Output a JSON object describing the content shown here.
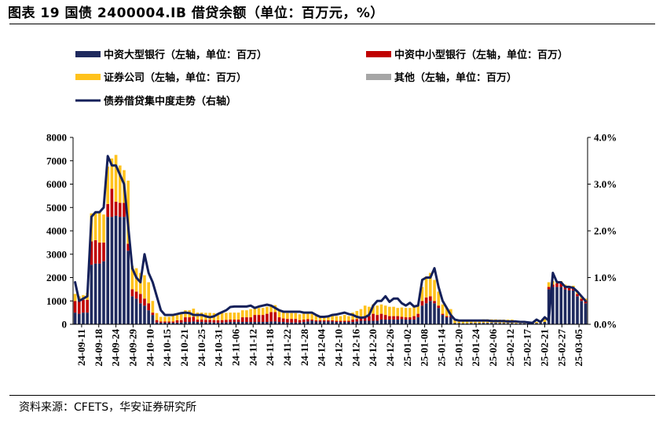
{
  "header": {
    "title": "图表 19  国债 2400004.IB 借贷余额（单位：百万元，%）"
  },
  "footer": {
    "source": "资料来源：CFETS，华安证券研究所"
  },
  "colors": {
    "large_bank": "#1F2A5E",
    "small_bank": "#C00000",
    "securities": "#FFC21C",
    "other": "#A6A6A6",
    "trend": "#14205A",
    "axis": "#000000"
  },
  "chart_data": {
    "type": "bar",
    "stacked": true,
    "dual_axis": true,
    "legend_position": "top",
    "grid": false,
    "left_axis": {
      "range": [
        0,
        8000
      ],
      "ticks": [
        "0",
        "1000",
        "2000",
        "3000",
        "4000",
        "5000",
        "6000",
        "7000",
        "8000"
      ]
    },
    "right_axis": {
      "range": [
        0,
        4.0
      ],
      "ticks": [
        "0.0%",
        "1.0%",
        "2.0%",
        "3.0%",
        "4.0%"
      ]
    },
    "x_tick_labels": [
      "24-09-11",
      "24-09-18",
      "24-09-24",
      "24-09-29",
      "24-10-10",
      "24-10-15",
      "24-10-21",
      "24-10-25",
      "24-10-31",
      "24-11-06",
      "24-11-12",
      "24-11-18",
      "24-11-22",
      "24-11-28",
      "24-12-04",
      "24-12-10",
      "24-12-16",
      "24-12-20",
      "24-12-26",
      "25-01-02",
      "25-01-08",
      "25-01-14",
      "25-01-20",
      "25-01-24",
      "25-02-06",
      "25-02-12",
      "25-02-17",
      "25-02-21",
      "25-02-27",
      "25-03-05"
    ],
    "legend": [
      {
        "key": "large_bank",
        "label": "中资大型银行（左轴，单位：百万）",
        "kind": "bar"
      },
      {
        "key": "small_bank",
        "label": "中资中小型银行（左轴，单位：百万）",
        "kind": "bar"
      },
      {
        "key": "securities",
        "label": "证券公司（左轴，单位：百万）",
        "kind": "bar"
      },
      {
        "key": "other",
        "label": "其他（左轴，单位：百万）",
        "kind": "bar"
      },
      {
        "key": "trend",
        "label": "债券借贷集中度走势（右轴）",
        "kind": "line"
      }
    ],
    "series": [
      {
        "key": "large_bank",
        "axis": "left",
        "values": [
          500,
          450,
          500,
          500,
          2550,
          2600,
          2600,
          2700,
          4600,
          4600,
          4650,
          4600,
          4600,
          3150,
          1200,
          1100,
          900,
          800,
          600,
          400,
          80,
          70,
          70,
          70,
          70,
          70,
          80,
          100,
          100,
          120,
          100,
          100,
          90,
          90,
          80,
          70,
          80,
          90,
          100,
          100,
          100,
          100,
          100,
          100,
          100,
          100,
          100,
          100,
          120,
          120,
          100,
          100,
          80,
          80,
          80,
          80,
          100,
          120,
          150,
          120,
          120,
          120,
          120,
          120,
          100,
          100,
          100,
          100,
          100,
          120,
          150,
          150,
          150,
          150,
          150,
          200,
          200,
          200,
          200,
          200,
          220,
          200,
          200,
          200,
          300,
          800,
          900,
          1000,
          900,
          700,
          400,
          300,
          300,
          50,
          50,
          40,
          40,
          50,
          50,
          50,
          60,
          60,
          60,
          60,
          50,
          50,
          50,
          50,
          40,
          40,
          40,
          40,
          50,
          50,
          50,
          100,
          1500,
          1600,
          1600,
          1600,
          1500,
          1450,
          1450,
          1200,
          1000,
          900
        ]
      },
      {
        "key": "small_bank",
        "axis": "left",
        "values": [
          500,
          550,
          550,
          550,
          1000,
          1000,
          900,
          800,
          550,
          1200,
          600,
          600,
          600,
          300,
          300,
          300,
          400,
          300,
          300,
          100,
          100,
          50,
          50,
          50,
          50,
          100,
          100,
          200,
          200,
          200,
          100,
          100,
          100,
          100,
          100,
          100,
          100,
          100,
          100,
          100,
          100,
          200,
          200,
          200,
          300,
          300,
          300,
          350,
          400,
          400,
          200,
          150,
          150,
          150,
          150,
          100,
          100,
          100,
          50,
          50,
          50,
          50,
          50,
          50,
          50,
          50,
          50,
          50,
          100,
          100,
          150,
          200,
          200,
          300,
          250,
          250,
          200,
          150,
          150,
          150,
          100,
          100,
          100,
          150,
          150,
          200,
          250,
          200,
          100,
          100,
          50,
          50,
          50,
          0,
          0,
          0,
          0,
          0,
          0,
          0,
          0,
          0,
          0,
          0,
          0,
          0,
          0,
          0,
          0,
          0,
          0,
          0,
          0,
          0,
          0,
          0,
          100,
          100,
          150,
          150,
          100,
          100,
          100,
          100,
          100,
          100
        ]
      },
      {
        "key": "securities",
        "axis": "left",
        "values": [
          300,
          200,
          200,
          300,
          1200,
          1200,
          1300,
          1200,
          1600,
          1300,
          2000,
          1600,
          1400,
          2700,
          1000,
          1000,
          900,
          1000,
          900,
          500,
          300,
          200,
          200,
          200,
          250,
          250,
          300,
          300,
          300,
          350,
          300,
          300,
          300,
          300,
          300,
          300,
          300,
          300,
          300,
          300,
          300,
          300,
          300,
          350,
          300,
          300,
          300,
          300,
          300,
          300,
          300,
          250,
          250,
          250,
          250,
          250,
          250,
          250,
          250,
          250,
          200,
          200,
          200,
          200,
          200,
          200,
          250,
          200,
          300,
          350,
          350,
          450,
          400,
          400,
          400,
          400,
          400,
          400,
          400,
          350,
          400,
          400,
          400,
          400,
          400,
          600,
          900,
          1000,
          900,
          600,
          400,
          350,
          300,
          150,
          150,
          150,
          150,
          150,
          150,
          150,
          150,
          150,
          150,
          150,
          150,
          150,
          150,
          150,
          50,
          50,
          50,
          50,
          50,
          50,
          100,
          150,
          200,
          150,
          100,
          100,
          100,
          100,
          100,
          100,
          100,
          100
        ]
      },
      {
        "key": "other",
        "axis": "left",
        "values": [
          0,
          0,
          0,
          0,
          0,
          0,
          0,
          0,
          0,
          0,
          0,
          0,
          0,
          0,
          0,
          0,
          0,
          0,
          0,
          0,
          0,
          0,
          0,
          0,
          0,
          0,
          0,
          0,
          0,
          0,
          0,
          0,
          0,
          0,
          0,
          0,
          0,
          0,
          0,
          0,
          0,
          0,
          0,
          0,
          0,
          0,
          0,
          0,
          0,
          0,
          0,
          0,
          0,
          0,
          0,
          0,
          0,
          0,
          0,
          0,
          0,
          0,
          0,
          0,
          0,
          0,
          0,
          0,
          0,
          0,
          0,
          0,
          0,
          0,
          0,
          0,
          0,
          0,
          0,
          0,
          0,
          0,
          0,
          0,
          0,
          0,
          0,
          0,
          0,
          0,
          0,
          0,
          0,
          0,
          0,
          0,
          0,
          0,
          0,
          0,
          0,
          0,
          0,
          0,
          0,
          0,
          0,
          0,
          0,
          0,
          0,
          0,
          0,
          0,
          0,
          0,
          0,
          0,
          0,
          0,
          0,
          0,
          0,
          0,
          0,
          0
        ]
      },
      {
        "key": "trend",
        "axis": "right",
        "kind": "line",
        "values": [
          0.9,
          0.5,
          0.55,
          0.6,
          2.3,
          2.4,
          2.4,
          2.5,
          3.6,
          3.4,
          3.4,
          3.2,
          3.0,
          2.1,
          1.2,
          1.0,
          0.9,
          1.5,
          1.1,
          0.9,
          0.6,
          0.3,
          0.2,
          0.2,
          0.2,
          0.22,
          0.24,
          0.25,
          0.24,
          0.2,
          0.2,
          0.2,
          0.17,
          0.15,
          0.17,
          0.22,
          0.26,
          0.3,
          0.37,
          0.38,
          0.38,
          0.38,
          0.38,
          0.4,
          0.35,
          0.38,
          0.4,
          0.42,
          0.4,
          0.35,
          0.3,
          0.27,
          0.27,
          0.27,
          0.27,
          0.27,
          0.25,
          0.25,
          0.25,
          0.2,
          0.16,
          0.16,
          0.17,
          0.2,
          0.21,
          0.23,
          0.25,
          0.22,
          0.2,
          0.16,
          0.14,
          0.15,
          0.2,
          0.4,
          0.5,
          0.5,
          0.6,
          0.48,
          0.55,
          0.55,
          0.45,
          0.4,
          0.46,
          0.38,
          0.4,
          0.95,
          1.0,
          1.0,
          1.2,
          0.8,
          0.5,
          0.35,
          0.2,
          0.1,
          0.08,
          0.08,
          0.08,
          0.08,
          0.08,
          0.08,
          0.08,
          0.08,
          0.07,
          0.07,
          0.07,
          0.07,
          0.06,
          0.06,
          0.06,
          0.05,
          0.05,
          0.04,
          0.03,
          0.1,
          0.05,
          0.15,
          0.08,
          1.1,
          0.9,
          0.9,
          0.8,
          0.8,
          0.78,
          0.7,
          0.6,
          0.5
        ]
      }
    ]
  }
}
